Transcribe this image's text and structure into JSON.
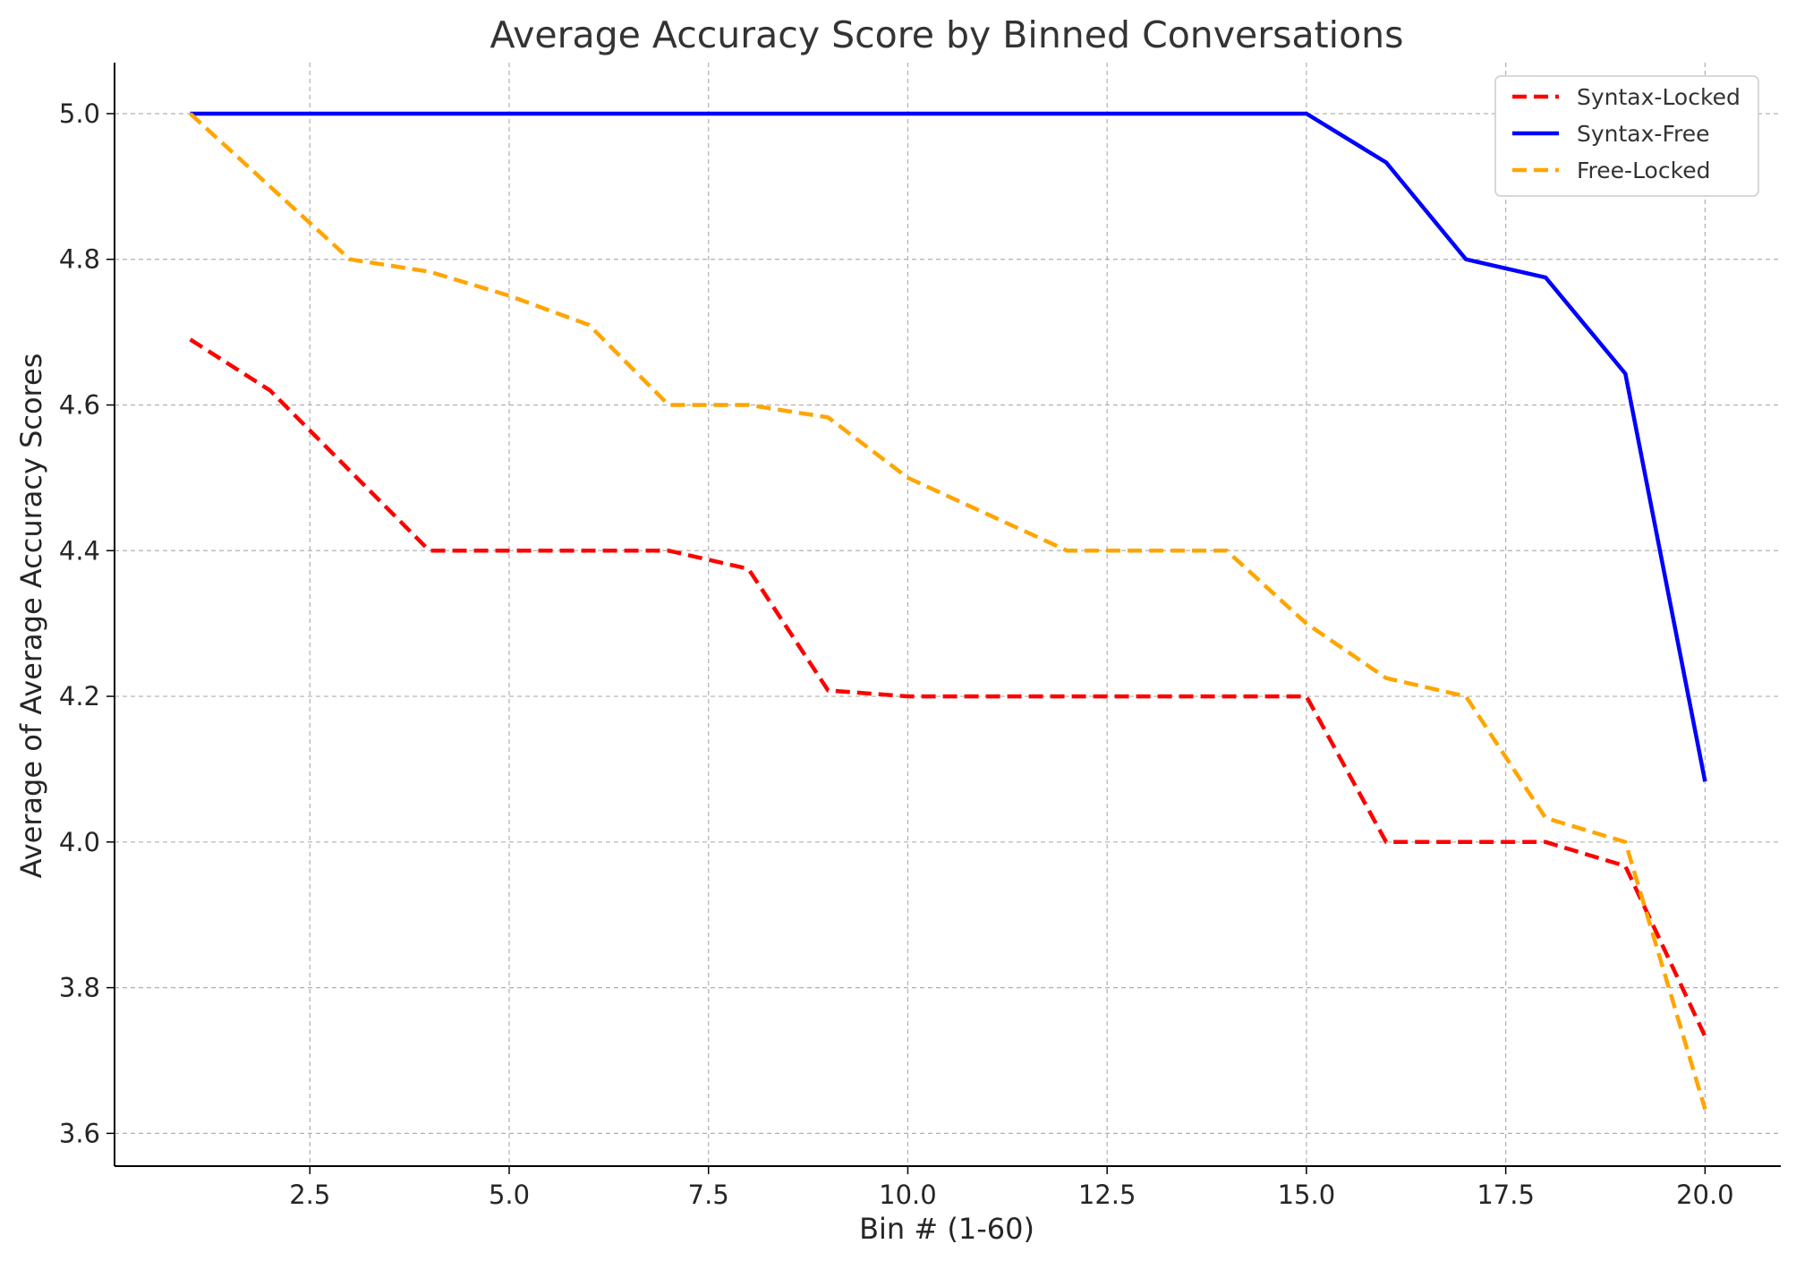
{
  "chart_data": {
    "type": "line",
    "title": "Average Accuracy Score by Binned Conversations",
    "xlabel": "Bin # (1-60)",
    "ylabel": "Average of Average Accuracy Scores",
    "x": [
      1,
      2,
      3,
      4,
      5,
      6,
      7,
      8,
      9,
      10,
      11,
      12,
      13,
      14,
      15,
      16,
      17,
      18,
      19,
      20
    ],
    "xlim": [
      0.05,
      20.95
    ],
    "ylim": [
      3.555,
      5.07
    ],
    "xticks": [
      "2.5",
      "5.0",
      "7.5",
      "10.0",
      "12.5",
      "15.0",
      "17.5",
      "20.0"
    ],
    "yticks": [
      "3.6",
      "3.8",
      "4.0",
      "4.2",
      "4.4",
      "4.6",
      "4.8",
      "5.0"
    ],
    "grid": true,
    "legend_position": "top-right",
    "series": [
      {
        "name": "Syntax-Locked",
        "color": "#ff0000",
        "style": "dashed",
        "values": [
          4.69,
          4.62,
          4.51,
          4.4,
          4.4,
          4.4,
          4.4,
          4.375,
          4.208,
          4.2,
          4.2,
          4.2,
          4.2,
          4.2,
          4.2,
          4.0,
          4.0,
          4.0,
          3.967,
          3.733
        ]
      },
      {
        "name": "Syntax-Free",
        "color": "#0000ff",
        "style": "solid",
        "values": [
          5.0,
          5.0,
          5.0,
          5.0,
          5.0,
          5.0,
          5.0,
          5.0,
          5.0,
          5.0,
          5.0,
          5.0,
          5.0,
          5.0,
          5.0,
          4.933,
          4.8,
          4.775,
          4.643,
          4.083
        ]
      },
      {
        "name": "Free-Locked",
        "color": "#ffa500",
        "style": "dashed",
        "values": [
          5.0,
          4.9,
          4.8,
          4.783,
          4.75,
          4.71,
          4.6,
          4.6,
          4.583,
          4.5,
          4.45,
          4.4,
          4.4,
          4.4,
          4.3,
          4.225,
          4.2,
          4.033,
          4.0,
          3.633
        ]
      }
    ]
  }
}
